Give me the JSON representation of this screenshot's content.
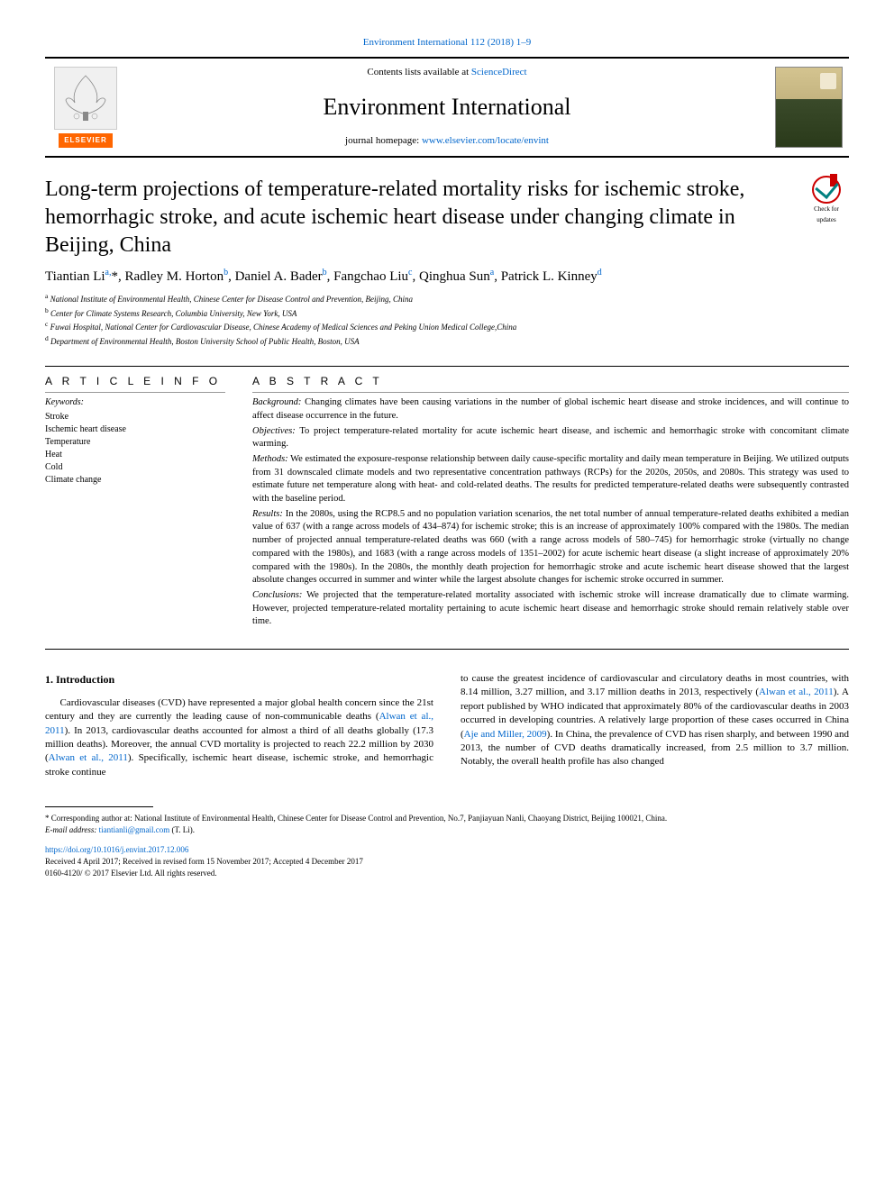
{
  "topbar": {
    "citation": "Environment International 112 (2018) 1–9",
    "citation_fontsize": 11
  },
  "header": {
    "contents_prefix": "Contents lists available at ",
    "contents_link": "ScienceDirect",
    "journal": "Environment International",
    "homepage_prefix": "journal homepage: ",
    "homepage_url": "www.elsevier.com/locate/envint",
    "publisher_label": "ELSEVIER"
  },
  "article": {
    "title": "Long-term projections of temperature-related mortality risks for ischemic stroke, hemorrhagic stroke, and acute ischemic heart disease under changing climate in Beijing, China",
    "check_updates_line1": "Check for",
    "check_updates_line2": "updates"
  },
  "authors_html": "Tiantian Li<sup><a>a</a>,</sup>*, Radley M. Horton<sup><a>b</a></sup>, Daniel A. Bader<sup><a>b</a></sup>, Fangchao Liu<sup><a>c</a></sup>, Qinghua Sun<sup><a>a</a></sup>, Patrick L. Kinney<sup><a>d</a></sup>",
  "affiliations": [
    {
      "sup": "a",
      "text": "National Institute of Environmental Health, Chinese Center for Disease Control and Prevention, Beijing, China"
    },
    {
      "sup": "b",
      "text": "Center for Climate Systems Research, Columbia University, New York, USA"
    },
    {
      "sup": "c",
      "text": "Fuwai Hospital, National Center for Cardiovascular Disease, Chinese Academy of Medical Sciences and Peking Union Medical College,China"
    },
    {
      "sup": "d",
      "text": "Department of Environmental Health, Boston University School of Public Health, Boston, USA"
    }
  ],
  "info": {
    "heading": "A R T I C L E  I N F O",
    "keywords_label": "Keywords:",
    "keywords": [
      "Stroke",
      "Ischemic heart disease",
      "Temperature",
      "Heat",
      "Cold",
      "Climate change"
    ]
  },
  "abstract": {
    "heading": "A B S T R A C T",
    "sections": [
      {
        "label": "Background:",
        "text": "Changing climates have been causing variations in the number of global ischemic heart disease and stroke incidences, and will continue to affect disease occurrence in the future."
      },
      {
        "label": "Objectives:",
        "text": "To project temperature-related mortality for acute ischemic heart disease, and ischemic and hemorrhagic stroke with concomitant climate warming."
      },
      {
        "label": "Methods:",
        "text": "We estimated the exposure-response relationship between daily cause-specific mortality and daily mean temperature in Beijing. We utilized outputs from 31 downscaled climate models and two representative concentration pathways (RCPs) for the 2020s, 2050s, and 2080s. This strategy was used to estimate future net temperature along with heat- and cold-related deaths. The results for predicted temperature-related deaths were subsequently contrasted with the baseline period."
      },
      {
        "label": "Results:",
        "text": "In the 2080s, using the RCP8.5 and no population variation scenarios, the net total number of annual temperature-related deaths exhibited a median value of 637 (with a range across models of 434–874) for ischemic stroke; this is an increase of approximately 100% compared with the 1980s. The median number of projected annual temperature-related deaths was 660 (with a range across models of 580–745) for hemorrhagic stroke (virtually no change compared with the 1980s), and 1683 (with a range across models of 1351–2002) for acute ischemic heart disease (a slight increase of approximately 20% compared with the 1980s). In the 2080s, the monthly death projection for hemorrhagic stroke and acute ischemic heart disease showed that the largest absolute changes occurred in summer and winter while the largest absolute changes for ischemic stroke occurred in summer."
      },
      {
        "label": "Conclusions:",
        "text": "We projected that the temperature-related mortality associated with ischemic stroke will increase dramatically due to climate warming. However, projected temperature-related mortality pertaining to acute ischemic heart disease and hemorrhagic stroke should remain relatively stable over time."
      }
    ]
  },
  "body": {
    "section_heading": "1. Introduction",
    "col1": "Cardiovascular diseases (CVD) have represented a major global health concern since the 21st century and they are currently the leading cause of non-communicable deaths ({Alwan et al., 2011}). In 2013, cardiovascular deaths accounted for almost a third of all deaths globally (17.3 million deaths). Moreover, the annual CVD mortality is projected to reach 22.2 million by 2030 ({Alwan et al., 2011}). Specifically, ischemic heart disease, ischemic stroke, and hemorrhagic stroke continue",
    "col2": "to cause the greatest incidence of cardiovascular and circulatory deaths in most countries, with 8.14 million, 3.27 million, and 3.17 million deaths in 2013, respectively ({Alwan et al., 2011}). A report published by WHO indicated that approximately 80% of the cardiovascular deaths in 2003 occurred in developing countries. A relatively large proportion of these cases occurred in China ({Aje and Miller, 2009}). In China, the prevalence of CVD has risen sharply, and between 1990 and 2013, the number of CVD deaths dramatically increased, from 2.5 million to 3.7 million. Notably, the overall health profile has also changed"
  },
  "footnotes": {
    "corresponding": "* Corresponding author at: National Institute of Environmental Health, Chinese Center for Disease Control and Prevention, No.7, Panjiayuan Nanli, Chaoyang District, Beijing 100021, China.",
    "email_label": "E-mail address: ",
    "email": "tiantianli@gmail.com",
    "email_suffix": " (T. Li)."
  },
  "footer": {
    "doi": "https://doi.org/10.1016/j.envint.2017.12.006",
    "history": "Received 4 April 2017; Received in revised form 15 November 2017; Accepted 4 December 2017",
    "copyright": "0160-4120/ © 2017 Elsevier Ltd. All rights reserved."
  },
  "colors": {
    "link": "#0066cc",
    "rule": "#000000",
    "elsevier_orange": "#ff6600",
    "badge_red": "#c00000",
    "badge_teal": "#008080"
  },
  "typography": {
    "title_fontsize": 24,
    "journal_fontsize": 26,
    "body_fontsize": 11,
    "abstract_fontsize": 10.5,
    "affil_fontsize": 9,
    "footnote_fontsize": 9
  }
}
